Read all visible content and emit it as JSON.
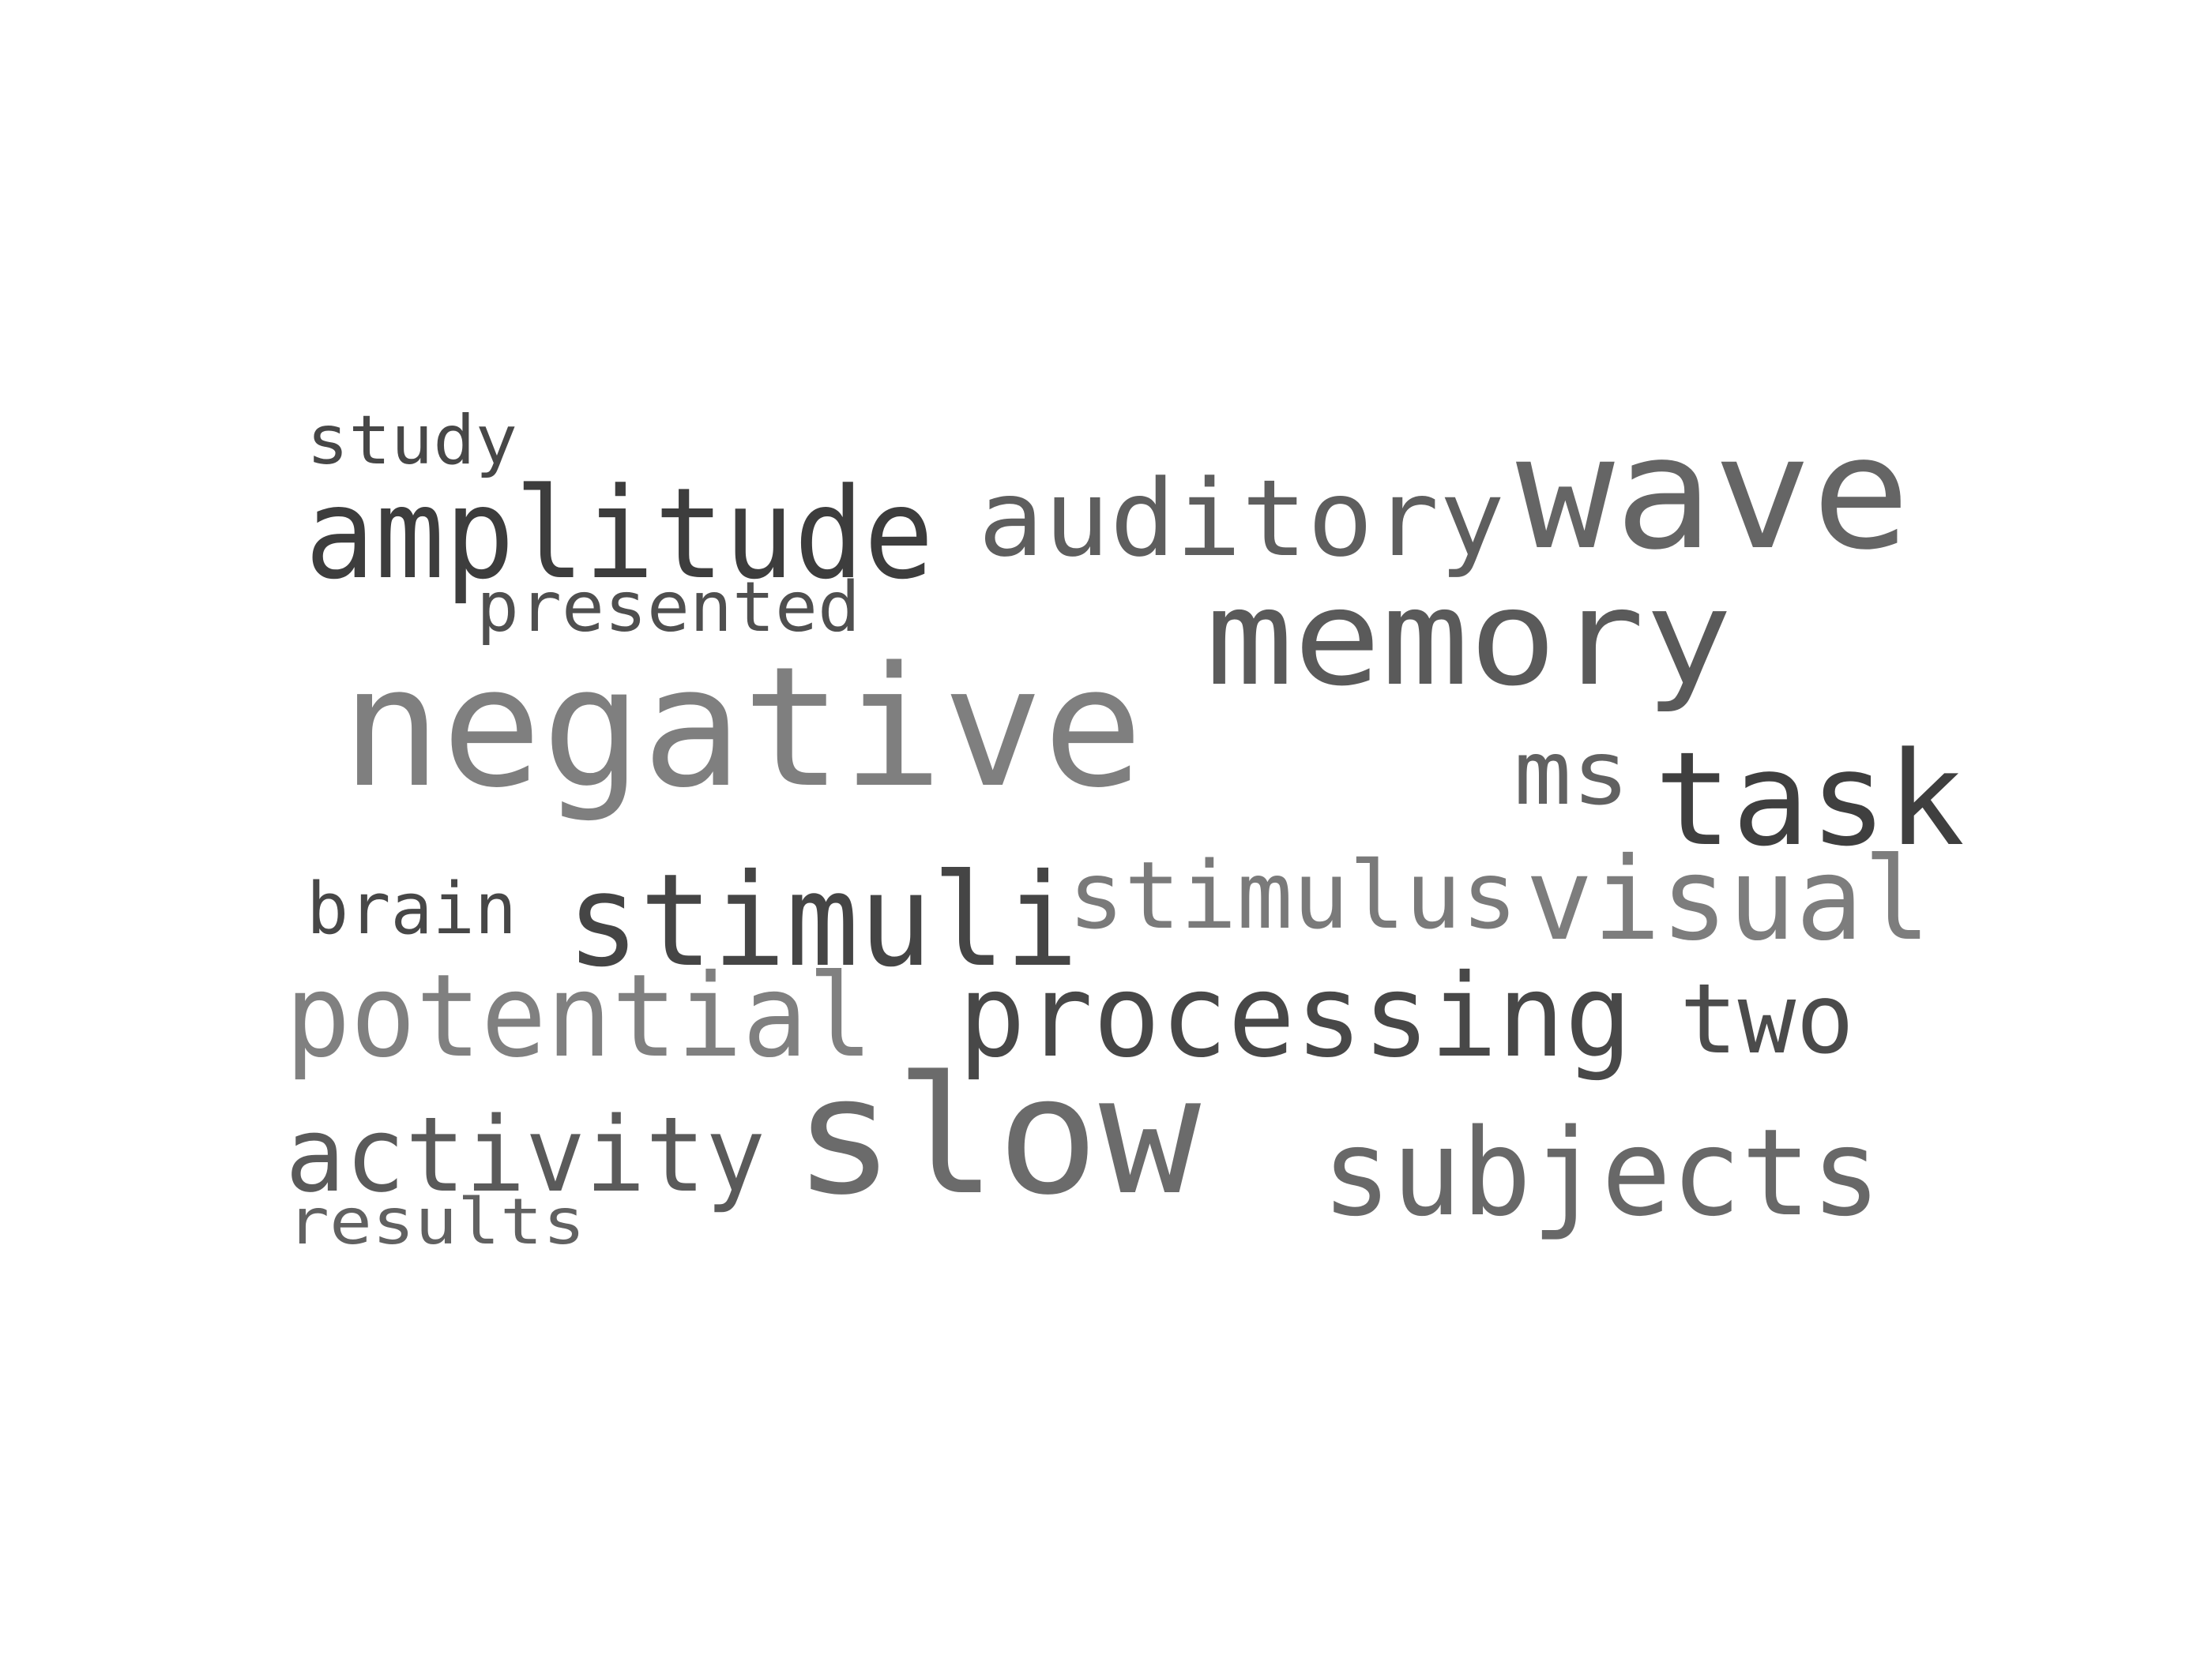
{
  "words": [
    {
      "id": "study",
      "text": "study",
      "color": "#474747"
    },
    {
      "id": "amplitude",
      "text": "amplitude",
      "color": "#3d3d3d"
    },
    {
      "id": "presented",
      "text": "presented",
      "color": "#4f4f4f"
    },
    {
      "id": "auditory",
      "text": "auditory",
      "color": "#5e5e5e"
    },
    {
      "id": "wave",
      "text": "wave",
      "color": "#656565"
    },
    {
      "id": "memory",
      "text": "memory",
      "color": "#5a5a5a"
    },
    {
      "id": "negative",
      "text": "negative",
      "color": "#7f7f7f"
    },
    {
      "id": "ms",
      "text": "ms",
      "color": "#616161"
    },
    {
      "id": "task",
      "text": "task",
      "color": "#3f3f3f"
    },
    {
      "id": "brain",
      "text": "brain",
      "color": "#474747"
    },
    {
      "id": "stimuli",
      "text": "stimuli",
      "color": "#454545"
    },
    {
      "id": "stimulus",
      "text": "stimulus",
      "color": "#7a7a7a"
    },
    {
      "id": "visual",
      "text": "visual",
      "color": "#7d7d7d"
    },
    {
      "id": "potential",
      "text": "potential",
      "color": "#808080"
    },
    {
      "id": "processing",
      "text": "processing",
      "color": "#484848"
    },
    {
      "id": "two",
      "text": "two",
      "color": "#4b4b4b"
    },
    {
      "id": "activity",
      "text": "activity",
      "color": "#5a5a5a"
    },
    {
      "id": "slow",
      "text": "slow",
      "color": "#6b6b6b"
    },
    {
      "id": "subjects",
      "text": "subjects",
      "color": "#686868"
    },
    {
      "id": "results",
      "text": "results",
      "color": "#616161"
    }
  ]
}
